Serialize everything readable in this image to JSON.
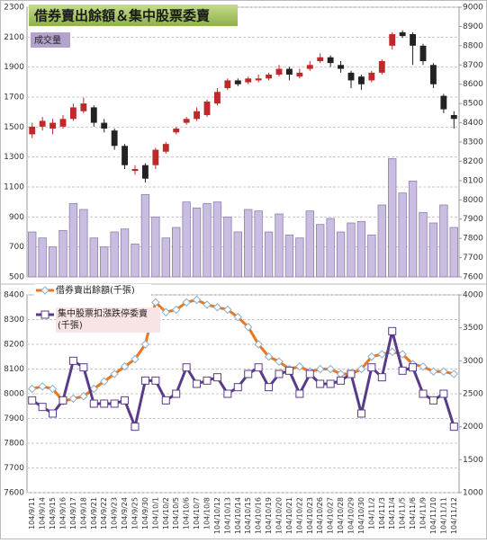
{
  "chart_data": [
    {
      "type": "candlestick",
      "title": "借券賣出餘額＆集中股票委賣",
      "ylim": [
        500,
        2300
      ],
      "yticks": [
        500,
        700,
        900,
        1100,
        1300,
        1500,
        1700,
        1900,
        2100,
        2300
      ],
      "y2lim": [
        7600,
        9000
      ],
      "y2ticks": [
        7600,
        7700,
        7800,
        7900,
        8000,
        8100,
        8200,
        8300,
        8400,
        8500,
        8600,
        8700,
        8800,
        8900,
        9000
      ],
      "grid": true,
      "series": [
        {
          "name": "成交量",
          "color": "#c9bde0",
          "values": [
            800,
            760,
            700,
            810,
            990,
            950,
            760,
            700,
            800,
            820,
            720,
            1050,
            900,
            760,
            830,
            1000,
            960,
            990,
            1000,
            900,
            800,
            950,
            940,
            800,
            920,
            780,
            760,
            940,
            850,
            890,
            800,
            860,
            870,
            780,
            980,
            1290,
            1060,
            1140,
            930,
            860,
            980,
            830
          ]
        }
      ],
      "candles": {
        "axis": "y2",
        "up_color": "#c0282a",
        "down_color": "#222222",
        "open": [
          8340,
          8380,
          8370,
          8380,
          8420,
          8460,
          8480,
          8400,
          8360,
          8280,
          8150,
          8180,
          8180,
          8250,
          8350,
          8400,
          8420,
          8440,
          8500,
          8580,
          8620,
          8610,
          8620,
          8630,
          8650,
          8680,
          8640,
          8680,
          8720,
          8740,
          8700,
          8660,
          8640,
          8620,
          8660,
          8800,
          8870,
          8860,
          8800,
          8700,
          8540,
          8440
        ],
        "high": [
          8400,
          8430,
          8420,
          8440,
          8500,
          8530,
          8490,
          8420,
          8370,
          8290,
          8180,
          8190,
          8270,
          8300,
          8380,
          8430,
          8480,
          8520,
          8580,
          8630,
          8630,
          8640,
          8650,
          8660,
          8700,
          8690,
          8680,
          8720,
          8760,
          8750,
          8720,
          8670,
          8650,
          8670,
          8730,
          8870,
          8880,
          8870,
          8810,
          8710,
          8550,
          8460
        ],
        "low": [
          8320,
          8360,
          8340,
          8370,
          8410,
          8450,
          8380,
          8350,
          8260,
          8160,
          8130,
          8090,
          8160,
          8240,
          8340,
          8390,
          8410,
          8430,
          8490,
          8570,
          8590,
          8600,
          8610,
          8620,
          8640,
          8620,
          8630,
          8670,
          8710,
          8690,
          8660,
          8580,
          8570,
          8610,
          8650,
          8780,
          8840,
          8700,
          8700,
          8580,
          8450,
          8370
        ],
        "close": [
          8380,
          8410,
          8400,
          8420,
          8480,
          8500,
          8400,
          8370,
          8280,
          8180,
          8160,
          8110,
          8260,
          8290,
          8370,
          8420,
          8460,
          8510,
          8560,
          8620,
          8600,
          8630,
          8630,
          8650,
          8680,
          8650,
          8660,
          8700,
          8740,
          8710,
          8680,
          8620,
          8600,
          8660,
          8720,
          8860,
          8850,
          8800,
          8720,
          8600,
          8470,
          8420
        ]
      }
    },
    {
      "type": "line",
      "categories": [
        "104/9/11",
        "104/9/14",
        "104/9/15",
        "104/9/16",
        "104/9/17",
        "104/9/18",
        "104/9/21",
        "104/9/22",
        "104/9/23",
        "104/9/24",
        "104/9/25",
        "104/9/30",
        "104/10/1",
        "104/10/2",
        "104/10/5",
        "104/10/6",
        "104/10/7",
        "104/10/8",
        "104/10/12",
        "104/10/13",
        "104/10/14",
        "104/10/15",
        "104/10/16",
        "104/10/19",
        "104/10/20",
        "104/10/21",
        "104/10/22",
        "104/10/23",
        "104/10/26",
        "104/10/27",
        "104/10/28",
        "104/10/29",
        "104/10/30",
        "104/11/2",
        "104/11/3",
        "104/11/4",
        "104/11/5",
        "104/11/6",
        "104/11/9",
        "104/11/10",
        "104/11/11",
        "104/11/12"
      ],
      "ylim": [
        7600,
        8400
      ],
      "yticks": [
        7600,
        7700,
        7800,
        7900,
        8000,
        8100,
        8200,
        8300,
        8400
      ],
      "y2lim": [
        1000,
        4000
      ],
      "y2ticks": [
        1000,
        1500,
        2000,
        2500,
        3000,
        3500,
        4000
      ],
      "grid": true,
      "series": [
        {
          "name": "借券賣出餘額(千張)",
          "color": "#e87722",
          "marker": "diamond",
          "values": [
            8020,
            8030,
            8020,
            7970,
            7980,
            7990,
            8020,
            8050,
            8080,
            8110,
            8140,
            8200,
            8370,
            8330,
            8340,
            8370,
            8380,
            8360,
            8350,
            8340,
            8310,
            8270,
            8200,
            8150,
            8130,
            8100,
            8110,
            8090,
            8100,
            8100,
            8080,
            8080,
            8100,
            8150,
            8160,
            8170,
            8160,
            8120,
            8110,
            8090,
            8090,
            8080
          ]
        },
        {
          "name": "集中股票扣漲跌停委賣(千張)",
          "color": "#5a3b8a",
          "marker": "square",
          "axis": "y2",
          "values": [
            2400,
            2300,
            2200,
            2400,
            3000,
            2900,
            2350,
            2350,
            2350,
            2400,
            2000,
            2700,
            2700,
            2400,
            2500,
            2900,
            2650,
            2700,
            2750,
            2500,
            2600,
            2800,
            2900,
            2600,
            2800,
            2850,
            2500,
            2800,
            2650,
            2650,
            2700,
            2800,
            2200,
            2900,
            2750,
            3450,
            2850,
            2900,
            2500,
            2400,
            2500,
            2000
          ]
        }
      ]
    }
  ]
}
